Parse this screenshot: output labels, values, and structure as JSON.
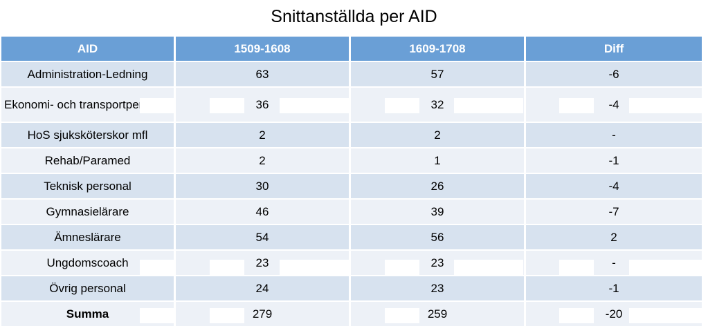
{
  "title": "Snittanställda per AID",
  "headers": [
    "AID",
    "1509-1608",
    "1609-1708",
    "Diff"
  ],
  "rows": [
    {
      "aid": "Administration-Ledning",
      "a": "63",
      "b": "57",
      "diff": "-6"
    },
    {
      "aid": "Ekonomi- och transportpersonal",
      "a": "36",
      "b": "32",
      "diff": "-4"
    },
    {
      "aid": "HoS sjuksköterskor mfl",
      "a": "2",
      "b": "2",
      "diff": "-"
    },
    {
      "aid": "Rehab/Paramed",
      "a": "2",
      "b": "1",
      "diff": "-1"
    },
    {
      "aid": "Teknisk personal",
      "a": "30",
      "b": "26",
      "diff": "-4"
    },
    {
      "aid": "Gymnasielärare",
      "a": "46",
      "b": "39",
      "diff": "-7"
    },
    {
      "aid": "Ämneslärare",
      "a": "54",
      "b": "56",
      "diff": "2"
    },
    {
      "aid": "Ungdomscoach",
      "a": "23",
      "b": "23",
      "diff": "-"
    },
    {
      "aid": "Övrig personal",
      "a": "24",
      "b": "23",
      "diff": "-1"
    },
    {
      "aid": "Summa",
      "a": "279",
      "b": "259",
      "diff": "-20"
    }
  ],
  "colors": {
    "header_bg": "#6a9fd6",
    "row_dark": "#d7e2ef",
    "row_light": "#edf1f7"
  }
}
